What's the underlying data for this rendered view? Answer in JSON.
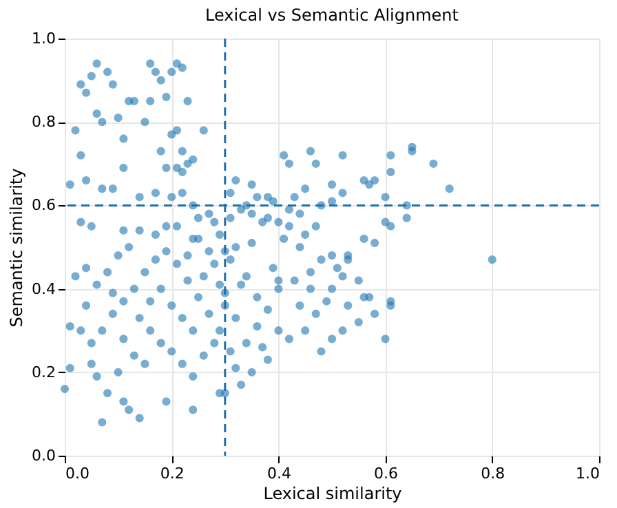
{
  "chart_data": {
    "type": "scatter",
    "title": "Lexical vs Semantic Alignment",
    "xlabel": "Lexical similarity",
    "ylabel": "Semantic similarity",
    "xlim": [
      0,
      1
    ],
    "ylim": [
      0,
      1
    ],
    "xticks": [
      {
        "value": 0,
        "label": "0.0"
      },
      0.2,
      0.4,
      0.6,
      0.8,
      {
        "value": 1,
        "label": "1.0"
      }
    ],
    "yticks": [
      {
        "value": 0,
        "label": "0.0"
      },
      0.2,
      0.4,
      0.6,
      0.8,
      {
        "value": 1,
        "label": "1.0"
      }
    ],
    "grid": true,
    "marker": "circle",
    "ref_lines": [
      {
        "axis": "x",
        "value": 0.3,
        "color": "#1f6fb0",
        "line_style": "dashed"
      },
      {
        "axis": "y",
        "value": 0.6,
        "color": "#1f6fb0",
        "line_style": "dashed"
      }
    ],
    "series": [
      {
        "color": "#1f77b4",
        "x": [
          0.8,
          0.72,
          0.69,
          0.65,
          0.65,
          0.61,
          0.61,
          0.58,
          0.56,
          0.57,
          0.6,
          0.64,
          0.64,
          0.6,
          0.61,
          0.58,
          0.56,
          0.53,
          0.5,
          0.52,
          0.5,
          0.5,
          0.52,
          0.51,
          0.53,
          0.05,
          0.06,
          0.08,
          0.03,
          0.04,
          0.09,
          0.16,
          0.17,
          0.18,
          0.2,
          0.21,
          0.22,
          0.23,
          0.16,
          0.19,
          0.1,
          0.12,
          0.13,
          0.02,
          0.06,
          0.07,
          0.15,
          0.21,
          0.2,
          0.22,
          0.18,
          0.11,
          0.03,
          0.01,
          0.04,
          0.07,
          0.09,
          0.11,
          0.14,
          0.17,
          0.22,
          0.24,
          0.2,
          0.22,
          0.19,
          0.21,
          0.23,
          0.24,
          0.26,
          0.05,
          0.03,
          0.11,
          0.14,
          0.17,
          0.19,
          0.24,
          0.28,
          0.27,
          0.25,
          0.0,
          0.07,
          0.14,
          0.19,
          0.24,
          0.29,
          0.3,
          0.12,
          0.08,
          0.11,
          0.01,
          0.05,
          0.06,
          0.03,
          0.01,
          0.33,
          0.31,
          0.32,
          0.38,
          0.42,
          0.48,
          0.5,
          0.52,
          0.55,
          0.58,
          0.6,
          0.61,
          0.61,
          0.57,
          0.55,
          0.56,
          0.47,
          0.45,
          0.44,
          0.4,
          0.36,
          0.34,
          0.39,
          0.43,
          0.46,
          0.48,
          0.44,
          0.41,
          0.37,
          0.35,
          0.38,
          0.42,
          0.45,
          0.47,
          0.44,
          0.4,
          0.43,
          0.45,
          0.42,
          0.41,
          0.46,
          0.47,
          0.35,
          0.32,
          0.31,
          0.34,
          0.39,
          0.38,
          0.36,
          0.42,
          0.48,
          0.35,
          0.32,
          0.31,
          0.33,
          0.3,
          0.32,
          0.29,
          0.27,
          0.25,
          0.23,
          0.21,
          0.19,
          0.17,
          0.15,
          0.13,
          0.11,
          0.09,
          0.07,
          0.05,
          0.04,
          0.06,
          0.08,
          0.1,
          0.12,
          0.02,
          0.04,
          0.09,
          0.14,
          0.16,
          0.18,
          0.2,
          0.22,
          0.24,
          0.26,
          0.28,
          0.13,
          0.15,
          0.11,
          0.1,
          0.16,
          0.18,
          0.2,
          0.22,
          0.24,
          0.26,
          0.28,
          0.27,
          0.25,
          0.23,
          0.21,
          0.29,
          0.34,
          0.36,
          0.38,
          0.4,
          0.37,
          0.35,
          0.4,
          0.5,
          0.52,
          0.53,
          0.46,
          0.49,
          0.31,
          0.33,
          0.29,
          0.3,
          0.3
        ],
        "values": [
          0.47,
          0.64,
          0.7,
          0.73,
          0.74,
          0.72,
          0.68,
          0.66,
          0.66,
          0.65,
          0.62,
          0.6,
          0.57,
          0.56,
          0.55,
          0.51,
          0.52,
          0.48,
          0.48,
          0.63,
          0.61,
          0.65,
          0.72,
          0.45,
          0.47,
          0.91,
          0.94,
          0.92,
          0.89,
          0.87,
          0.89,
          0.94,
          0.92,
          0.9,
          0.92,
          0.94,
          0.93,
          0.85,
          0.85,
          0.86,
          0.81,
          0.85,
          0.85,
          0.78,
          0.82,
          0.8,
          0.8,
          0.78,
          0.77,
          0.73,
          0.73,
          0.76,
          0.72,
          0.65,
          0.66,
          0.64,
          0.64,
          0.69,
          0.62,
          0.63,
          0.63,
          0.6,
          0.62,
          0.68,
          0.69,
          0.69,
          0.7,
          0.71,
          0.78,
          0.55,
          0.56,
          0.54,
          0.54,
          0.53,
          0.55,
          0.52,
          0.56,
          0.58,
          0.57,
          0.16,
          0.08,
          0.09,
          0.13,
          0.11,
          0.15,
          0.15,
          0.11,
          0.15,
          0.13,
          0.21,
          0.22,
          0.19,
          0.3,
          0.31,
          0.17,
          0.25,
          0.21,
          0.23,
          0.28,
          0.25,
          0.28,
          0.3,
          0.32,
          0.34,
          0.28,
          0.36,
          0.37,
          0.38,
          0.42,
          0.38,
          0.34,
          0.3,
          0.36,
          0.4,
          0.38,
          0.43,
          0.45,
          0.42,
          0.44,
          0.47,
          0.5,
          0.52,
          0.56,
          0.58,
          0.57,
          0.55,
          0.53,
          0.55,
          0.58,
          0.56,
          0.62,
          0.64,
          0.7,
          0.72,
          0.73,
          0.7,
          0.65,
          0.66,
          0.63,
          0.6,
          0.61,
          0.62,
          0.62,
          0.59,
          0.6,
          0.51,
          0.5,
          0.47,
          0.41,
          0.36,
          0.33,
          0.3,
          0.34,
          0.38,
          0.42,
          0.46,
          0.49,
          0.47,
          0.44,
          0.4,
          0.37,
          0.34,
          0.3,
          0.27,
          0.36,
          0.41,
          0.44,
          0.48,
          0.5,
          0.43,
          0.45,
          0.39,
          0.33,
          0.3,
          0.27,
          0.25,
          0.22,
          0.19,
          0.24,
          0.27,
          0.24,
          0.22,
          0.28,
          0.2,
          0.37,
          0.4,
          0.36,
          0.33,
          0.3,
          0.43,
          0.46,
          0.49,
          0.52,
          0.48,
          0.55,
          0.41,
          0.27,
          0.31,
          0.35,
          0.3,
          0.26,
          0.2,
          0.42,
          0.4,
          0.43,
          0.36,
          0.4,
          0.37,
          0.57,
          0.59,
          0.53,
          0.49,
          0.39
        ]
      }
    ]
  }
}
